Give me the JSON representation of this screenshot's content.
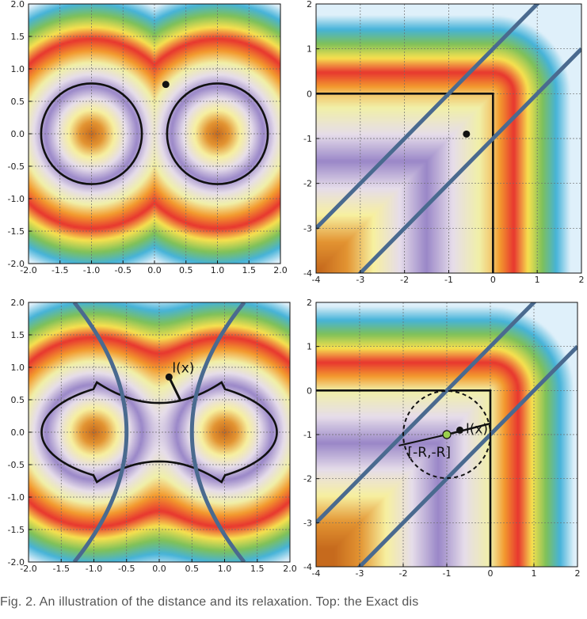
{
  "figure": {
    "panels": [
      {
        "id": "top-left",
        "xlim": [
          -2,
          2
        ],
        "ylim": [
          -2,
          2
        ],
        "xticks": [
          "-2.0",
          "-1.5",
          "-1.0",
          "-0.5",
          "0.0",
          "0.5",
          "1.0",
          "1.5",
          "2.0"
        ],
        "yticks": [
          "-2.0",
          "-1.5",
          "-1.0",
          "-0.5",
          "0.0",
          "0.5",
          "1.0",
          "1.5",
          "2.0"
        ],
        "colormap": "distance to two point centers at (-1,0) and (1,0)",
        "black_curves": "circles radius 0.8 about (-1,0) and (1,0)",
        "blue_lines": "none",
        "point": [
          0.18,
          0.76
        ]
      },
      {
        "id": "top-right",
        "xlim": [
          -4,
          2
        ],
        "ylim": [
          -4,
          2
        ],
        "xticks": [
          "-4",
          "-3",
          "-2",
          "-1",
          "0",
          "1",
          "2"
        ],
        "yticks": [
          "-4",
          "-3",
          "-2",
          "-1",
          "0",
          "1",
          "2"
        ],
        "colormap": "distance to quadrant corner at (0,0)",
        "black_curves": "quadrant boundary y=0 for x<=0 and x=0 for y<=0",
        "blue_lines": "y = x + 1 and y = x - 1",
        "point": [
          -0.6,
          -0.9
        ]
      },
      {
        "id": "bottom-left",
        "xlim": [
          -2,
          2
        ],
        "ylim": [
          -2,
          2
        ],
        "xticks": [
          "-2.0",
          "-1.5",
          "-1.0",
          "-0.5",
          "0.0",
          "0.5",
          "1.0",
          "1.5",
          "2.0"
        ],
        "yticks": [
          "-2.0",
          "-1.5",
          "-1.0",
          "-0.5",
          "0.0",
          "0.5",
          "1.0",
          "1.5",
          "2.0"
        ],
        "colormap": "smooth-min distance to two centers",
        "black_curves": "dumbbell level set",
        "blue_lines": "hyperbola branches x = ±(0.5 + 0.2 y²)",
        "point": [
          0.15,
          0.85
        ],
        "annotation": "l(x)"
      },
      {
        "id": "bottom-right",
        "xlim": [
          -4,
          2
        ],
        "ylim": [
          -4,
          2
        ],
        "xticks": [
          "-4",
          "-3",
          "-2",
          "-1",
          "0",
          "1",
          "2"
        ],
        "yticks": [
          "-4",
          "-3",
          "-2",
          "-1",
          "0",
          "1",
          "2"
        ],
        "colormap": "rounded quadrant distance",
        "black_curves": "quadrant boundary plus dashed circle radius 1 about (-1,-1)",
        "blue_lines": "y = x + 1 and y = x - 1",
        "point": [
          -0.7,
          -0.9
        ],
        "green_point": [
          -1,
          -1
        ],
        "annotations": [
          "l(x)",
          "[-R,-R]"
        ]
      }
    ],
    "caption": "Fig. 2.   An illustration of the distance and its relaxation. Top: the  Exact dis",
    "colors": {
      "cmap_stops": [
        "#c66a1d",
        "#e39432",
        "#f7f0a0",
        "#e6ddea",
        "#9a87c8",
        "#e6ddea",
        "#f1f0a8",
        "#f39a2e",
        "#e8362f",
        "#f7e14f",
        "#7fc15a",
        "#46b3d9",
        "#dff0fa"
      ],
      "black": "#111111",
      "blue_line": "#4a6a8f",
      "green_point": "#9bd04d"
    }
  }
}
